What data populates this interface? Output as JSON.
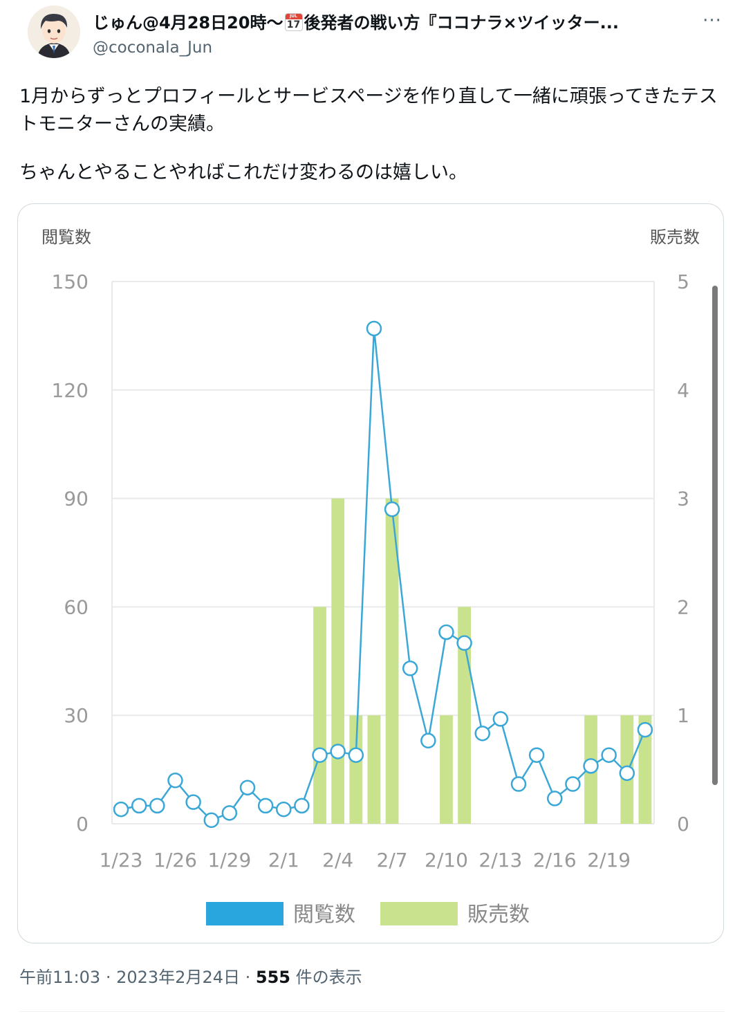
{
  "tweet": {
    "display_name_part1": "じゅん@4月28日20時〜",
    "calendar_icon": "calendar-icon",
    "calendar_month": "JUL",
    "calendar_day": "17",
    "display_name_part2": "後発者の戦い方『ココナラ×ツイッター...",
    "handle": "@coconala_Jun",
    "more_icon": "more-icon",
    "more_glyph": "···",
    "text_line1": "1月からずっとプロフィールとサービスページを作り直して一緒に頑張ってきたテストモニターさんの実績。",
    "text_line2": "ちゃんとやることやればこれだけ変わるのは嬉しい。",
    "time": "午前11:03",
    "sep": "·",
    "date": "2023年2月24日",
    "views_count": "555",
    "views_label": "件の表示"
  },
  "chart_data": {
    "type": "bar+line",
    "left_axis_label": "閲覧数",
    "right_axis_label": "販売数",
    "left_ylim": [
      0,
      150
    ],
    "left_ticks": [
      "150",
      "120",
      "90",
      "60",
      "30",
      "0"
    ],
    "right_ylim": [
      0,
      5
    ],
    "right_ticks": [
      "5",
      "4",
      "3",
      "2",
      "1",
      "0"
    ],
    "x_tick_labels": [
      "1/23",
      "1/26",
      "1/29",
      "2/1",
      "2/4",
      "2/7",
      "2/10",
      "2/13",
      "2/16",
      "2/19"
    ],
    "categories": [
      "1/23",
      "1/24",
      "1/25",
      "1/26",
      "1/27",
      "1/28",
      "1/29",
      "1/30",
      "1/31",
      "2/1",
      "2/2",
      "2/3",
      "2/4",
      "2/5",
      "2/6",
      "2/7",
      "2/8",
      "2/9",
      "2/10",
      "2/11",
      "2/12",
      "2/13",
      "2/14",
      "2/15",
      "2/16",
      "2/17",
      "2/18",
      "2/19",
      "2/20",
      "2/21"
    ],
    "grid": true,
    "legend_position": "bottom",
    "series": [
      {
        "name": "閲覧数",
        "kind": "line",
        "axis": "left",
        "color": "#3aa7d6",
        "values": [
          4,
          5,
          5,
          12,
          6,
          1,
          3,
          10,
          5,
          4,
          5,
          19,
          20,
          19,
          137,
          87,
          43,
          23,
          53,
          50,
          25,
          29,
          11,
          19,
          7,
          11,
          16,
          19,
          14,
          26
        ]
      },
      {
        "name": "販売数",
        "kind": "bar",
        "axis": "right",
        "color": "#c9e28e",
        "values": [
          0,
          0,
          0,
          0,
          0,
          0,
          0,
          0,
          0,
          0,
          0,
          2,
          3,
          1,
          1,
          3,
          0,
          0,
          1,
          2,
          0,
          0,
          0,
          0,
          0,
          0,
          1,
          0,
          1,
          1
        ]
      }
    ],
    "legend": [
      {
        "label": "閲覧数",
        "color": "#2aa6de"
      },
      {
        "label": "販売数",
        "color": "#c9e28e"
      }
    ]
  }
}
